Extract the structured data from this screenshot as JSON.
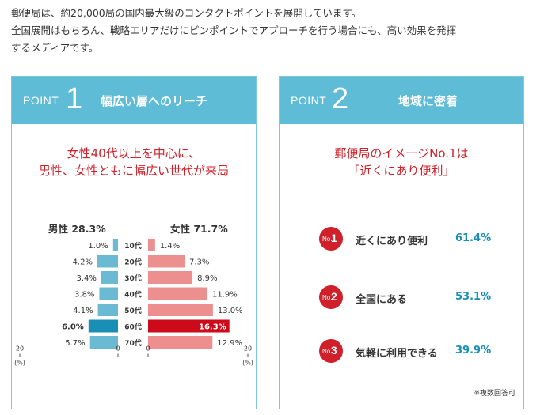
{
  "intro": {
    "line1": "郵便局は、約20,000局の国内最大級のコンタクトポイントを展開しています。",
    "line2": "全国展開はもちろん、戦略エリアだけにピンポイントでアプローチを行う場合にも、高い効果を発揮",
    "line3": "するメディアです。"
  },
  "point1": {
    "label": "POINT",
    "number": "1",
    "title": "幅広い層へのリーチ",
    "headline1": "女性40代以上を中心に、",
    "headline2": "男性、女性ともに幅広い世代が来局",
    "male_label": "男性 28.3%",
    "female_label": "女性 71.7%"
  },
  "point2": {
    "label": "POINT",
    "number": "2",
    "title": "地域に密着",
    "headline1": "郵便局のイメージNo.1は",
    "headline2": "「近くにあり便利」",
    "ranks": [
      {
        "no": "No.",
        "n": "1",
        "label": "近くにあり便利",
        "value": "61.4%"
      },
      {
        "no": "No.",
        "n": "2",
        "label": "全国にある",
        "value": "53.1%"
      },
      {
        "no": "No.",
        "n": "3",
        "label": "気軽に利用できる",
        "value": "39.9%"
      }
    ],
    "note": "※複数回答可"
  },
  "colors": {
    "header_bg": "#5ebcd6",
    "male_bar": "#6bbad3",
    "male_highlight": "#1a8fb5",
    "female_bar": "#ee8f8f",
    "female_highlight": "#cc0a1a",
    "accent_red": "#d0202a"
  },
  "chart_data": {
    "type": "bar",
    "categories": [
      "10代",
      "20代",
      "30代",
      "40代",
      "50代",
      "60代",
      "70代"
    ],
    "series": [
      {
        "name": "男性",
        "values": [
          1.0,
          4.2,
          3.4,
          3.8,
          4.1,
          6.0,
          5.7
        ],
        "labels": [
          "1.0%",
          "4.2%",
          "3.4%",
          "3.8%",
          "4.1%",
          "6.0%",
          "5.7%"
        ]
      },
      {
        "name": "女性",
        "values": [
          1.4,
          7.3,
          8.9,
          11.9,
          13.0,
          16.3,
          12.9
        ],
        "labels": [
          "1.4%",
          "7.3%",
          "8.9%",
          "11.9%",
          "13.0%",
          "16.3%",
          "12.9%"
        ]
      }
    ],
    "highlight_index": 5,
    "male_axis": {
      "ticks": [
        "20",
        "0"
      ],
      "unit": "(%)",
      "range": [
        0,
        20
      ]
    },
    "female_axis": {
      "ticks": [
        "0",
        "20"
      ],
      "unit": "(%)",
      "range": [
        0,
        20
      ]
    }
  }
}
